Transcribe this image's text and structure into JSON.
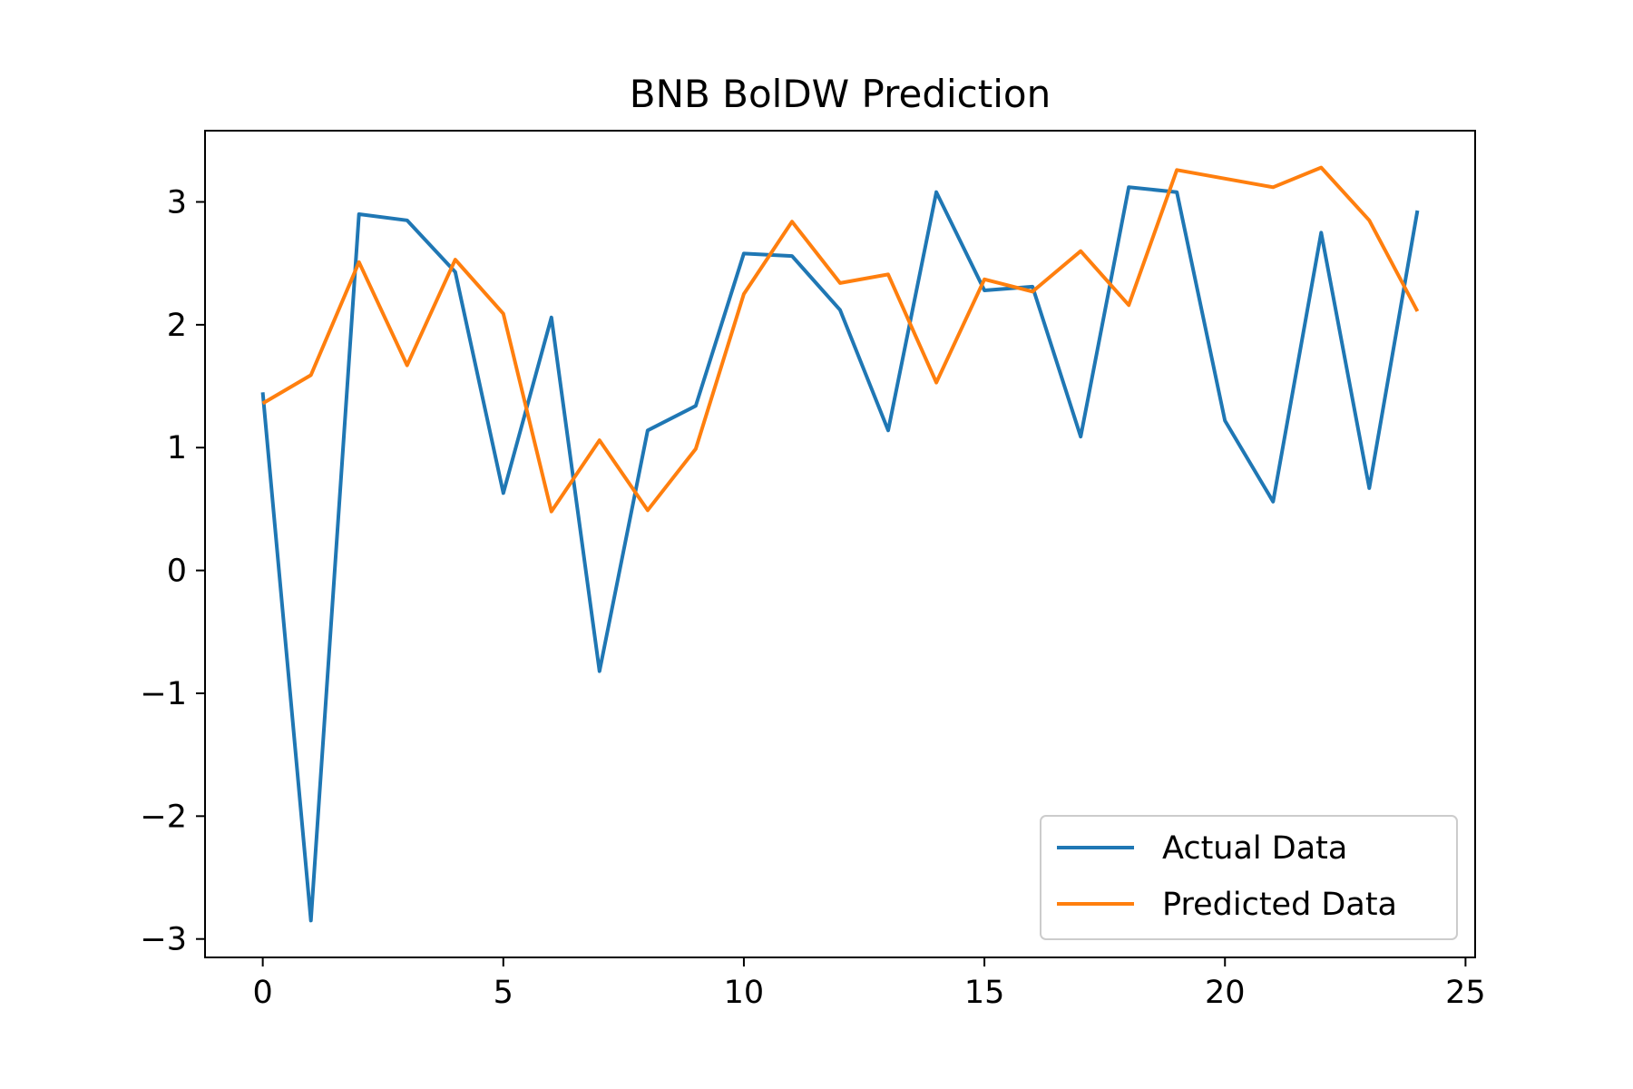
{
  "chart_data": {
    "type": "line",
    "title": "BNB BolDW Prediction",
    "xlabel": "",
    "ylabel": "",
    "xlim": [
      -1.2,
      25.2
    ],
    "ylim": [
      -3.15,
      3.58
    ],
    "x_ticks": [
      0,
      5,
      10,
      15,
      20,
      25
    ],
    "y_ticks": [
      -3,
      -2,
      -1,
      0,
      1,
      2,
      3
    ],
    "x_tick_labels": [
      "0",
      "5",
      "10",
      "15",
      "20",
      "25"
    ],
    "y_tick_labels": [
      "−3",
      "−2",
      "−1",
      "0",
      "1",
      "2",
      "3"
    ],
    "grid": false,
    "legend_position": "lower-right",
    "x": [
      0,
      1,
      2,
      3,
      4,
      5,
      6,
      7,
      8,
      9,
      10,
      11,
      12,
      13,
      14,
      15,
      16,
      17,
      18,
      19,
      20,
      21,
      22,
      23,
      24
    ],
    "series": [
      {
        "name": "Actual Data",
        "color": "#1f77b4",
        "values": [
          1.45,
          -2.85,
          2.9,
          2.85,
          2.43,
          0.63,
          2.06,
          -0.82,
          1.14,
          1.34,
          2.58,
          2.56,
          2.12,
          1.14,
          3.08,
          2.28,
          2.31,
          1.09,
          3.12,
          3.08,
          1.22,
          0.56,
          2.75,
          0.67,
          2.93
        ]
      },
      {
        "name": "Predicted Data",
        "color": "#ff7f0e",
        "values": [
          1.36,
          1.59,
          2.51,
          1.67,
          2.53,
          2.09,
          0.48,
          1.06,
          0.49,
          0.99,
          2.25,
          2.84,
          2.34,
          2.41,
          1.53,
          2.37,
          2.27,
          2.6,
          2.16,
          3.26,
          3.19,
          3.12,
          3.28,
          2.85,
          2.11
        ]
      }
    ]
  }
}
